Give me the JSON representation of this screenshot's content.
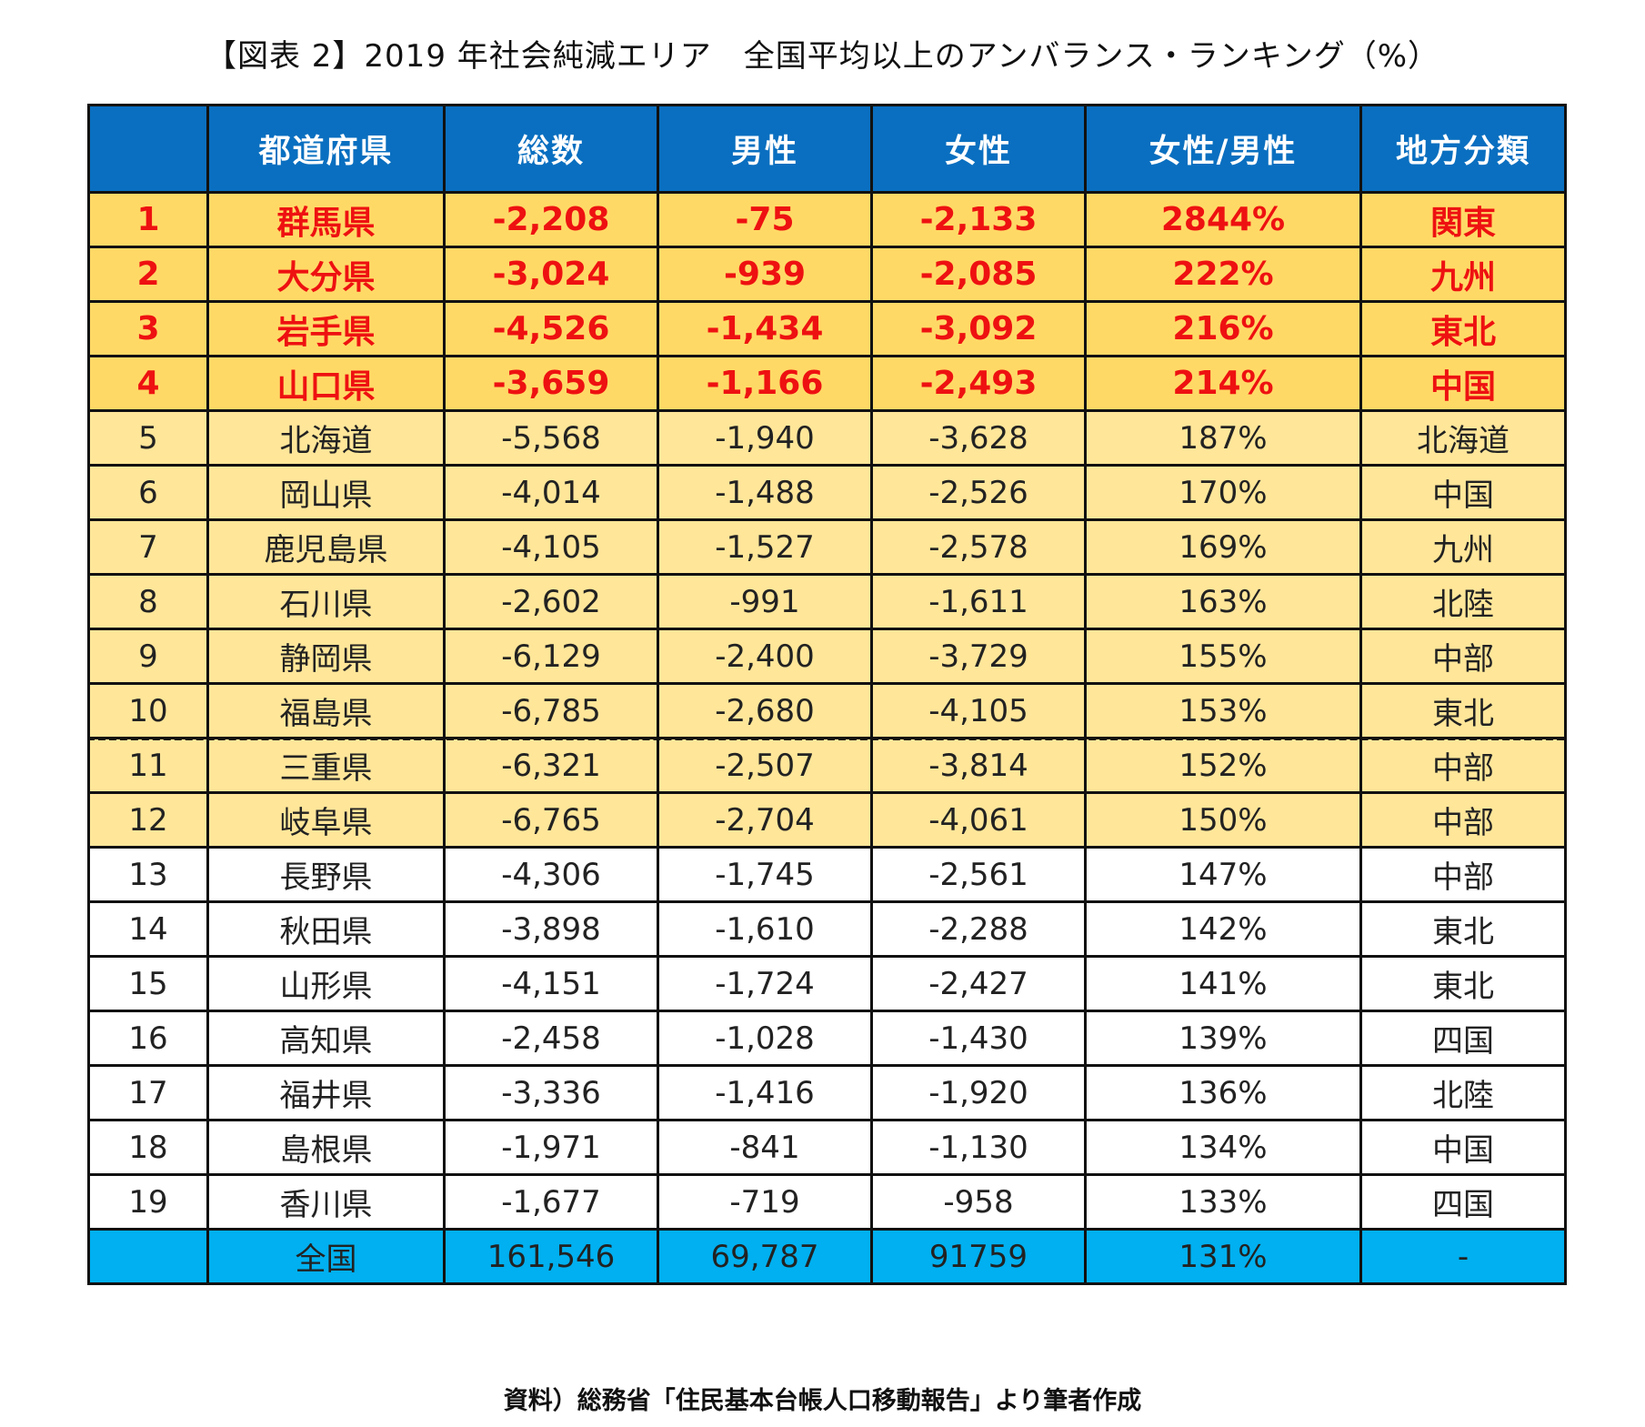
{
  "title": "【図表 2】2019 年社会純減エリア　全国平均以上のアンバランス・ランキング（%）",
  "source": "資料）総務省「住民基本台帳人口移動報告」より筆者作成",
  "colors": {
    "header_bg": "#0a6fc0",
    "top4_bg": "#ffd966",
    "top4_text": "#ee1111",
    "above_avg_bg": "#ffe699",
    "national_bg": "#00b0f0"
  },
  "chart_data": {
    "type": "table",
    "columns": [
      "",
      "都道府県",
      "総数",
      "男性",
      "女性",
      "女性/男性",
      "地方分類"
    ],
    "rows": [
      {
        "rank": "1",
        "prefecture": "群馬県",
        "total": "-2,208",
        "male": "-75",
        "female": "-2,133",
        "ratio": "2844%",
        "region": "関東",
        "tier": "top"
      },
      {
        "rank": "2",
        "prefecture": "大分県",
        "total": "-3,024",
        "male": "-939",
        "female": "-2,085",
        "ratio": "222%",
        "region": "九州",
        "tier": "top"
      },
      {
        "rank": "3",
        "prefecture": "岩手県",
        "total": "-4,526",
        "male": "-1,434",
        "female": "-3,092",
        "ratio": "216%",
        "region": "東北",
        "tier": "top"
      },
      {
        "rank": "4",
        "prefecture": "山口県",
        "total": "-3,659",
        "male": "-1,166",
        "female": "-2,493",
        "ratio": "214%",
        "region": "中国",
        "tier": "top"
      },
      {
        "rank": "5",
        "prefecture": "北海道",
        "total": "-5,568",
        "male": "-1,940",
        "female": "-3,628",
        "ratio": "187%",
        "region": "北海道",
        "tier": "mid"
      },
      {
        "rank": "6",
        "prefecture": "岡山県",
        "total": "-4,014",
        "male": "-1,488",
        "female": "-2,526",
        "ratio": "170%",
        "region": "中国",
        "tier": "mid"
      },
      {
        "rank": "7",
        "prefecture": "鹿児島県",
        "total": "-4,105",
        "male": "-1,527",
        "female": "-2,578",
        "ratio": "169%",
        "region": "九州",
        "tier": "mid"
      },
      {
        "rank": "8",
        "prefecture": "石川県",
        "total": "-2,602",
        "male": "-991",
        "female": "-1,611",
        "ratio": "163%",
        "region": "北陸",
        "tier": "mid"
      },
      {
        "rank": "9",
        "prefecture": "静岡県",
        "total": "-6,129",
        "male": "-2,400",
        "female": "-3,729",
        "ratio": "155%",
        "region": "中部",
        "tier": "mid"
      },
      {
        "rank": "10",
        "prefecture": "福島県",
        "total": "-6,785",
        "male": "-2,680",
        "female": "-4,105",
        "ratio": "153%",
        "region": "東北",
        "tier": "mid"
      },
      {
        "rank": "11",
        "prefecture": "三重県",
        "total": "-6,321",
        "male": "-2,507",
        "female": "-3,814",
        "ratio": "152%",
        "region": "中部",
        "tier": "mid"
      },
      {
        "rank": "12",
        "prefecture": "岐阜県",
        "total": "-6,765",
        "male": "-2,704",
        "female": "-4,061",
        "ratio": "150%",
        "region": "中部",
        "tier": "mid"
      },
      {
        "rank": "13",
        "prefecture": "長野県",
        "total": "-4,306",
        "male": "-1,745",
        "female": "-2,561",
        "ratio": "147%",
        "region": "中部",
        "tier": "low"
      },
      {
        "rank": "14",
        "prefecture": "秋田県",
        "total": "-3,898",
        "male": "-1,610",
        "female": "-2,288",
        "ratio": "142%",
        "region": "東北",
        "tier": "low"
      },
      {
        "rank": "15",
        "prefecture": "山形県",
        "total": "-4,151",
        "male": "-1,724",
        "female": "-2,427",
        "ratio": "141%",
        "region": "東北",
        "tier": "low"
      },
      {
        "rank": "16",
        "prefecture": "高知県",
        "total": "-2,458",
        "male": "-1,028",
        "female": "-1,430",
        "ratio": "139%",
        "region": "四国",
        "tier": "low"
      },
      {
        "rank": "17",
        "prefecture": "福井県",
        "total": "-3,336",
        "male": "-1,416",
        "female": "-1,920",
        "ratio": "136%",
        "region": "北陸",
        "tier": "low"
      },
      {
        "rank": "18",
        "prefecture": "島根県",
        "total": "-1,971",
        "male": "-841",
        "female": "-1,130",
        "ratio": "134%",
        "region": "中国",
        "tier": "low"
      },
      {
        "rank": "19",
        "prefecture": "香川県",
        "total": "-1,677",
        "male": "-719",
        "female": "-958",
        "ratio": "133%",
        "region": "四国",
        "tier": "low"
      },
      {
        "rank": "",
        "prefecture": "全国",
        "total": "161,546",
        "male": "69,787",
        "female": "91759",
        "ratio": "131%",
        "region": "-",
        "tier": "nat"
      }
    ]
  }
}
